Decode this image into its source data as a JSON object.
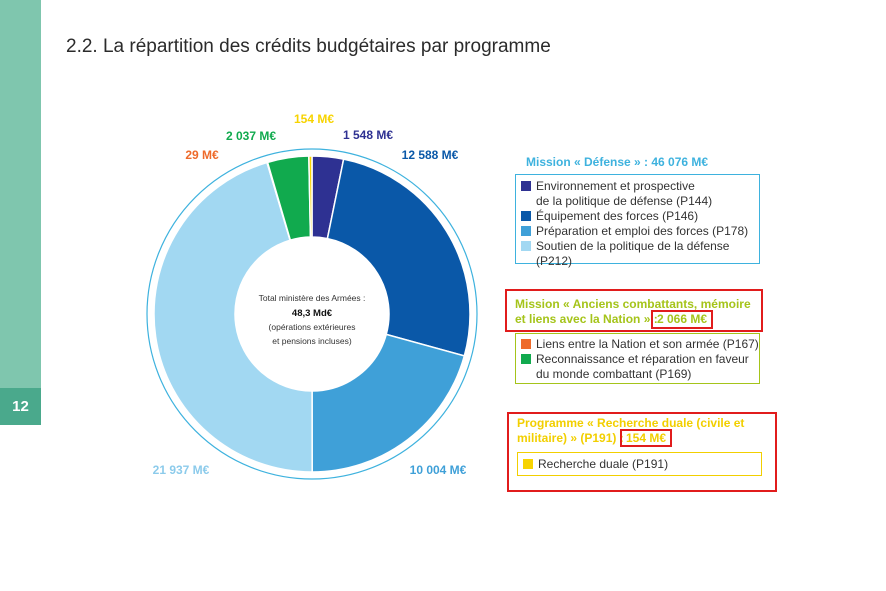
{
  "page": {
    "number": "12",
    "title": "2.2. La répartition des crédits budgétaires par programme"
  },
  "chart_data": {
    "type": "pie",
    "unit": "M€",
    "slices": [
      {
        "code": "P144",
        "value": 1548,
        "label": "1 548 M€",
        "color": "#2e3192"
      },
      {
        "code": "P146",
        "value": 12588,
        "label": "12 588 M€",
        "color": "#0a58a8"
      },
      {
        "code": "P178",
        "value": 10004,
        "label": "10 004 M€",
        "color": "#3fa0d8"
      },
      {
        "code": "P212",
        "value": 21937,
        "label": "21 937 M€",
        "color": "#a2d8f2"
      },
      {
        "code": "P167",
        "value": 29,
        "label": "29 M€",
        "color": "#ee6a2a"
      },
      {
        "code": "P169",
        "value": 2037,
        "label": "2 037 M€",
        "color": "#11aa4e"
      },
      {
        "code": "P191",
        "value": 154,
        "label": "154 M€",
        "color": "#f7d300"
      }
    ],
    "center": {
      "line1": "Total ministère des Armées :",
      "total": "48,3 Md€",
      "line3": "(opérations extérieures",
      "line4": "et pensions incluses)"
    }
  },
  "legend": {
    "defense": {
      "header": "Mission « Défense » : 46 076 M€",
      "color": "#3eb2de",
      "items": [
        {
          "text": "Environnement et prospective\nde la politique de défense (P144)",
          "color": "#2e3192"
        },
        {
          "text": "Équipement des forces (P146)",
          "color": "#0a58a8"
        },
        {
          "text": "Préparation et emploi des forces (P178)",
          "color": "#3fa0d8"
        },
        {
          "text": "Soutien de la politique de la défense (P212)",
          "color": "#a2d8f2"
        }
      ]
    },
    "anciens": {
      "header": "Mission « Anciens combattants, mémoire\net liens avec la Nation » :",
      "amount": "2 066 M€",
      "color": "#a5c41a",
      "items": [
        {
          "text": "Liens entre la Nation et son armée (P167)",
          "color": "#ee6a2a"
        },
        {
          "text": "Reconnaissance et réparation en faveur\ndu monde combattant (P169)",
          "color": "#11aa4e"
        }
      ]
    },
    "recherche": {
      "header": "Programme « Recherche duale (civile et\nmilitaire) » (P191) :",
      "amount": "154 M€",
      "color": "#f2cf00",
      "items": [
        {
          "text": "Recherche duale (P191)",
          "color": "#f7d300"
        }
      ]
    }
  }
}
